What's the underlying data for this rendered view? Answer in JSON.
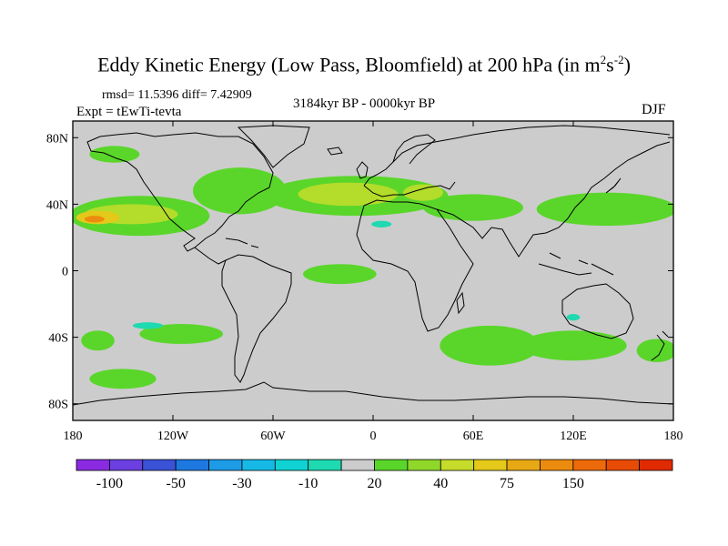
{
  "chart_data": {
    "type": "heatmap",
    "title_main": "Eddy Kinetic Energy (Low Pass, Bloomfield) at 200 hPa (in m",
    "title_unit_exp1": "2",
    "title_unit_mid": "s",
    "title_unit_exp2": "-2",
    "title_close": ")",
    "stats": "rmsd= 11.5396 diff= 7.42909",
    "experiment": "Expt = tEwTi-tevta",
    "period": "3184kyr BP - 0000kyr BP",
    "season": "DJF",
    "x_range": [
      -180,
      180
    ],
    "y_range": [
      -90,
      90
    ],
    "x_ticks": [
      {
        "v": -180,
        "label": "180"
      },
      {
        "v": -120,
        "label": "120W"
      },
      {
        "v": -60,
        "label": "60W"
      },
      {
        "v": 0,
        "label": "0"
      },
      {
        "v": 60,
        "label": "60E"
      },
      {
        "v": 120,
        "label": "120E"
      },
      {
        "v": 180,
        "label": "180"
      }
    ],
    "y_ticks": [
      {
        "v": 80,
        "label": "80N"
      },
      {
        "v": 40,
        "label": "40N"
      },
      {
        "v": 0,
        "label": "0"
      },
      {
        "v": -40,
        "label": "40S"
      },
      {
        "v": -80,
        "label": "80S"
      }
    ],
    "colorbar": {
      "colors": [
        "#8a2be2",
        "#6b3fe0",
        "#3a52d6",
        "#1d78e0",
        "#1d9be6",
        "#16b9e6",
        "#10d2d2",
        "#1fd9b0",
        "#cccccc",
        "#5ad62a",
        "#8fd82a",
        "#c6dc2a",
        "#e4c81a",
        "#e8a814",
        "#ec8c0e",
        "#ec6a0a",
        "#e84b06",
        "#e02a02"
      ],
      "labels": [
        {
          "after": 1,
          "text": "-100"
        },
        {
          "after": 3,
          "text": "-50"
        },
        {
          "after": 5,
          "text": "-30"
        },
        {
          "after": 7,
          "text": "-10"
        },
        {
          "after": 9,
          "text": "20"
        },
        {
          "after": 11,
          "text": "40"
        },
        {
          "after": 13,
          "text": "75"
        },
        {
          "after": 15,
          "text": "150"
        }
      ]
    },
    "regions": [
      {
        "level": "green",
        "lat": 33,
        "lon": -140,
        "rlat": 12,
        "rlon": 42
      },
      {
        "level": "green",
        "lat": 48,
        "lon": -80,
        "rlat": 14,
        "rlon": 28
      },
      {
        "level": "green",
        "lat": 45,
        "lon": -10,
        "rlat": 12,
        "rlon": 55
      },
      {
        "level": "green",
        "lat": 38,
        "lon": 60,
        "rlat": 8,
        "rlon": 30
      },
      {
        "level": "green",
        "lat": 37,
        "lon": 140,
        "rlat": 10,
        "rlon": 42
      },
      {
        "level": "green",
        "lat": -2,
        "lon": -20,
        "rlat": 6,
        "rlon": 22
      },
      {
        "level": "green",
        "lat": -45,
        "lon": 70,
        "rlat": 12,
        "rlon": 30
      },
      {
        "level": "green",
        "lat": -45,
        "lon": 120,
        "rlat": 9,
        "rlon": 32
      },
      {
        "level": "green",
        "lat": -38,
        "lon": -115,
        "rlat": 6,
        "rlon": 25
      },
      {
        "level": "green",
        "lat": -48,
        "lon": 170,
        "rlat": 7,
        "rlon": 12
      },
      {
        "level": "green",
        "lat": -42,
        "lon": -165,
        "rlat": 6,
        "rlon": 10
      },
      {
        "level": "green",
        "lat": -65,
        "lon": -150,
        "rlat": 6,
        "rlon": 20
      },
      {
        "level": "green",
        "lat": 70,
        "lon": -155,
        "rlat": 5,
        "rlon": 15
      },
      {
        "level": "yellowgreen",
        "lat": 34,
        "lon": -145,
        "rlat": 6,
        "rlon": 28
      },
      {
        "level": "yellowgreen",
        "lat": 46,
        "lon": -15,
        "rlat": 7,
        "rlon": 30
      },
      {
        "level": "yellowgreen",
        "lat": 47,
        "lon": 30,
        "rlat": 5,
        "rlon": 12
      },
      {
        "level": "yellow",
        "lat": 32,
        "lon": -165,
        "rlat": 4,
        "rlon": 13
      },
      {
        "level": "orange",
        "lat": 31,
        "lon": -167,
        "rlat": 2,
        "rlon": 6
      },
      {
        "level": "cyan",
        "lat": 28,
        "lon": 5,
        "rlat": 2,
        "rlon": 6
      },
      {
        "level": "cyan",
        "lat": -33,
        "lon": -135,
        "rlat": 2,
        "rlon": 9
      },
      {
        "level": "cyan",
        "lat": -28,
        "lon": 120,
        "rlat": 2,
        "rlon": 4
      }
    ],
    "level_colors": {
      "green": "#5ad62a",
      "yellowgreen": "#b4dc2a",
      "yellow": "#e4c81a",
      "orange": "#ec8c0e",
      "cyan": "#1fd9b0"
    },
    "background_color": "#cccccc"
  }
}
